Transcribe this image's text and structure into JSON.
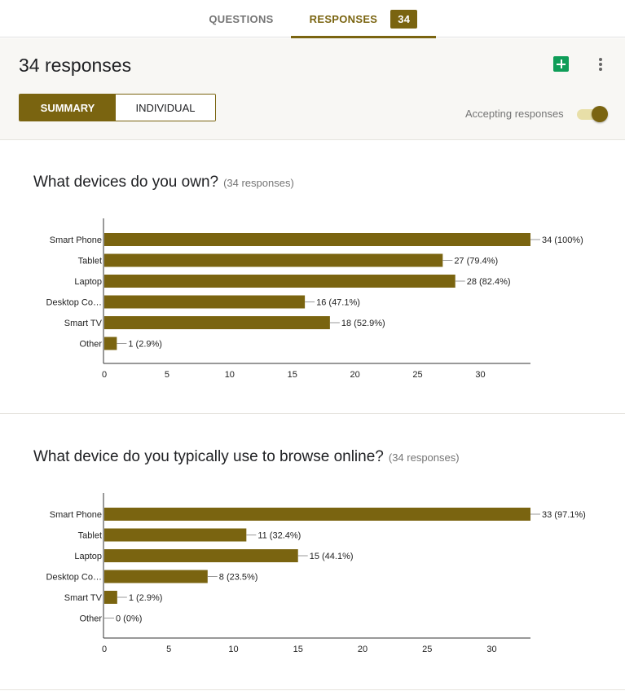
{
  "tabs": {
    "questions_label": "QUESTIONS",
    "responses_label": "RESPONSES",
    "responses_count": "34"
  },
  "header": {
    "title": "34 responses",
    "summary_label": "SUMMARY",
    "individual_label": "INDIVIDUAL",
    "accepting_label": "Accepting responses",
    "accepting_on": true
  },
  "colors": {
    "accent": "#7a6410",
    "sheets": "#0f9d58"
  },
  "icons": [
    "sheets-icon",
    "more-vert-icon"
  ],
  "questions": [
    {
      "title": "What devices do you own?",
      "subtitle": "(34 responses)"
    },
    {
      "title": "What device do you typically use to browse online?",
      "subtitle": "(34 responses)"
    }
  ],
  "chart_data": [
    {
      "type": "bar",
      "orientation": "horizontal",
      "categories": [
        "Smart Phone",
        "Tablet",
        "Laptop",
        "Desktop Co…",
        "Smart TV",
        "Other"
      ],
      "values": [
        34,
        27,
        28,
        16,
        18,
        1
      ],
      "data_labels": [
        "34 (100%)",
        "27 (79.4%)",
        "28 (82.4%)",
        "16 (47.1%)",
        "18 (52.9%)",
        "1 (2.9%)"
      ],
      "xlim": [
        0,
        34
      ],
      "xticks": [
        0,
        5,
        10,
        15,
        20,
        25,
        30
      ],
      "grid": false
    },
    {
      "type": "bar",
      "orientation": "horizontal",
      "categories": [
        "Smart Phone",
        "Tablet",
        "Laptop",
        "Desktop Co…",
        "Smart TV",
        "Other"
      ],
      "values": [
        33,
        11,
        15,
        8,
        1,
        0
      ],
      "data_labels": [
        "33 (97.1%)",
        "11 (32.4%)",
        "15 (44.1%)",
        "8 (23.5%)",
        "1 (2.9%)",
        "0 (0%)"
      ],
      "xlim": [
        0,
        33
      ],
      "xticks": [
        0,
        5,
        10,
        15,
        20,
        25,
        30
      ],
      "grid": false
    }
  ]
}
